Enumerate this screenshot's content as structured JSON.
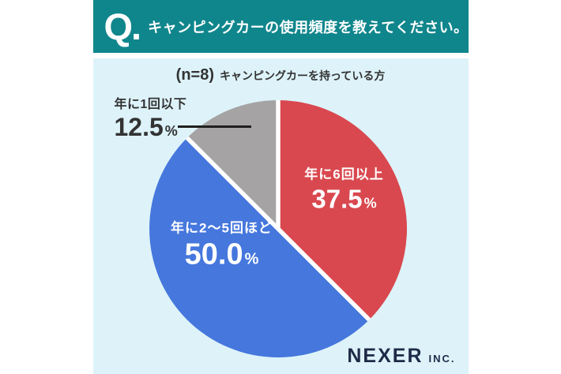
{
  "header": {
    "q_label": "Q.",
    "title": "キャンピングカーの使用頻度を教えてください。"
  },
  "subtitle": {
    "sample": "(n=8)",
    "text": "キャンピングカーを持っている方"
  },
  "chart_data": {
    "type": "pie",
    "title": "キャンピングカーの使用頻度を教えてください。",
    "subtitle": "(n=8) キャンピングカーを持っている方",
    "start_angle_deg": 0,
    "direction": "clockwise",
    "total": 100,
    "slices": [
      {
        "label": "年に6回以上",
        "value": 37.5,
        "display": "37.5",
        "unit": "%",
        "color": "#d9484f",
        "text_color": "#ffffff",
        "label_position": "inside"
      },
      {
        "label": "年に2〜5回ほど",
        "value": 50.0,
        "display": "50.0",
        "unit": "%",
        "color": "#4577dd",
        "text_color": "#ffffff",
        "label_position": "inside"
      },
      {
        "label": "年に1回以下",
        "value": 12.5,
        "display": "12.5",
        "unit": "%",
        "color": "#a5a3a4",
        "text_color": "#333333",
        "label_position": "outside-callout"
      }
    ]
  },
  "footer": {
    "brand": "NEXER",
    "brand_suffix": "INC."
  },
  "colors": {
    "header_bg": "#0f868c",
    "header_text": "#ffffff",
    "panel_bg": "#ddf3f9",
    "text_dark": "#333333",
    "leader_line": "#1f1f1f",
    "brand_navy": "#1e2a47",
    "gap_white": "#ffffff"
  }
}
